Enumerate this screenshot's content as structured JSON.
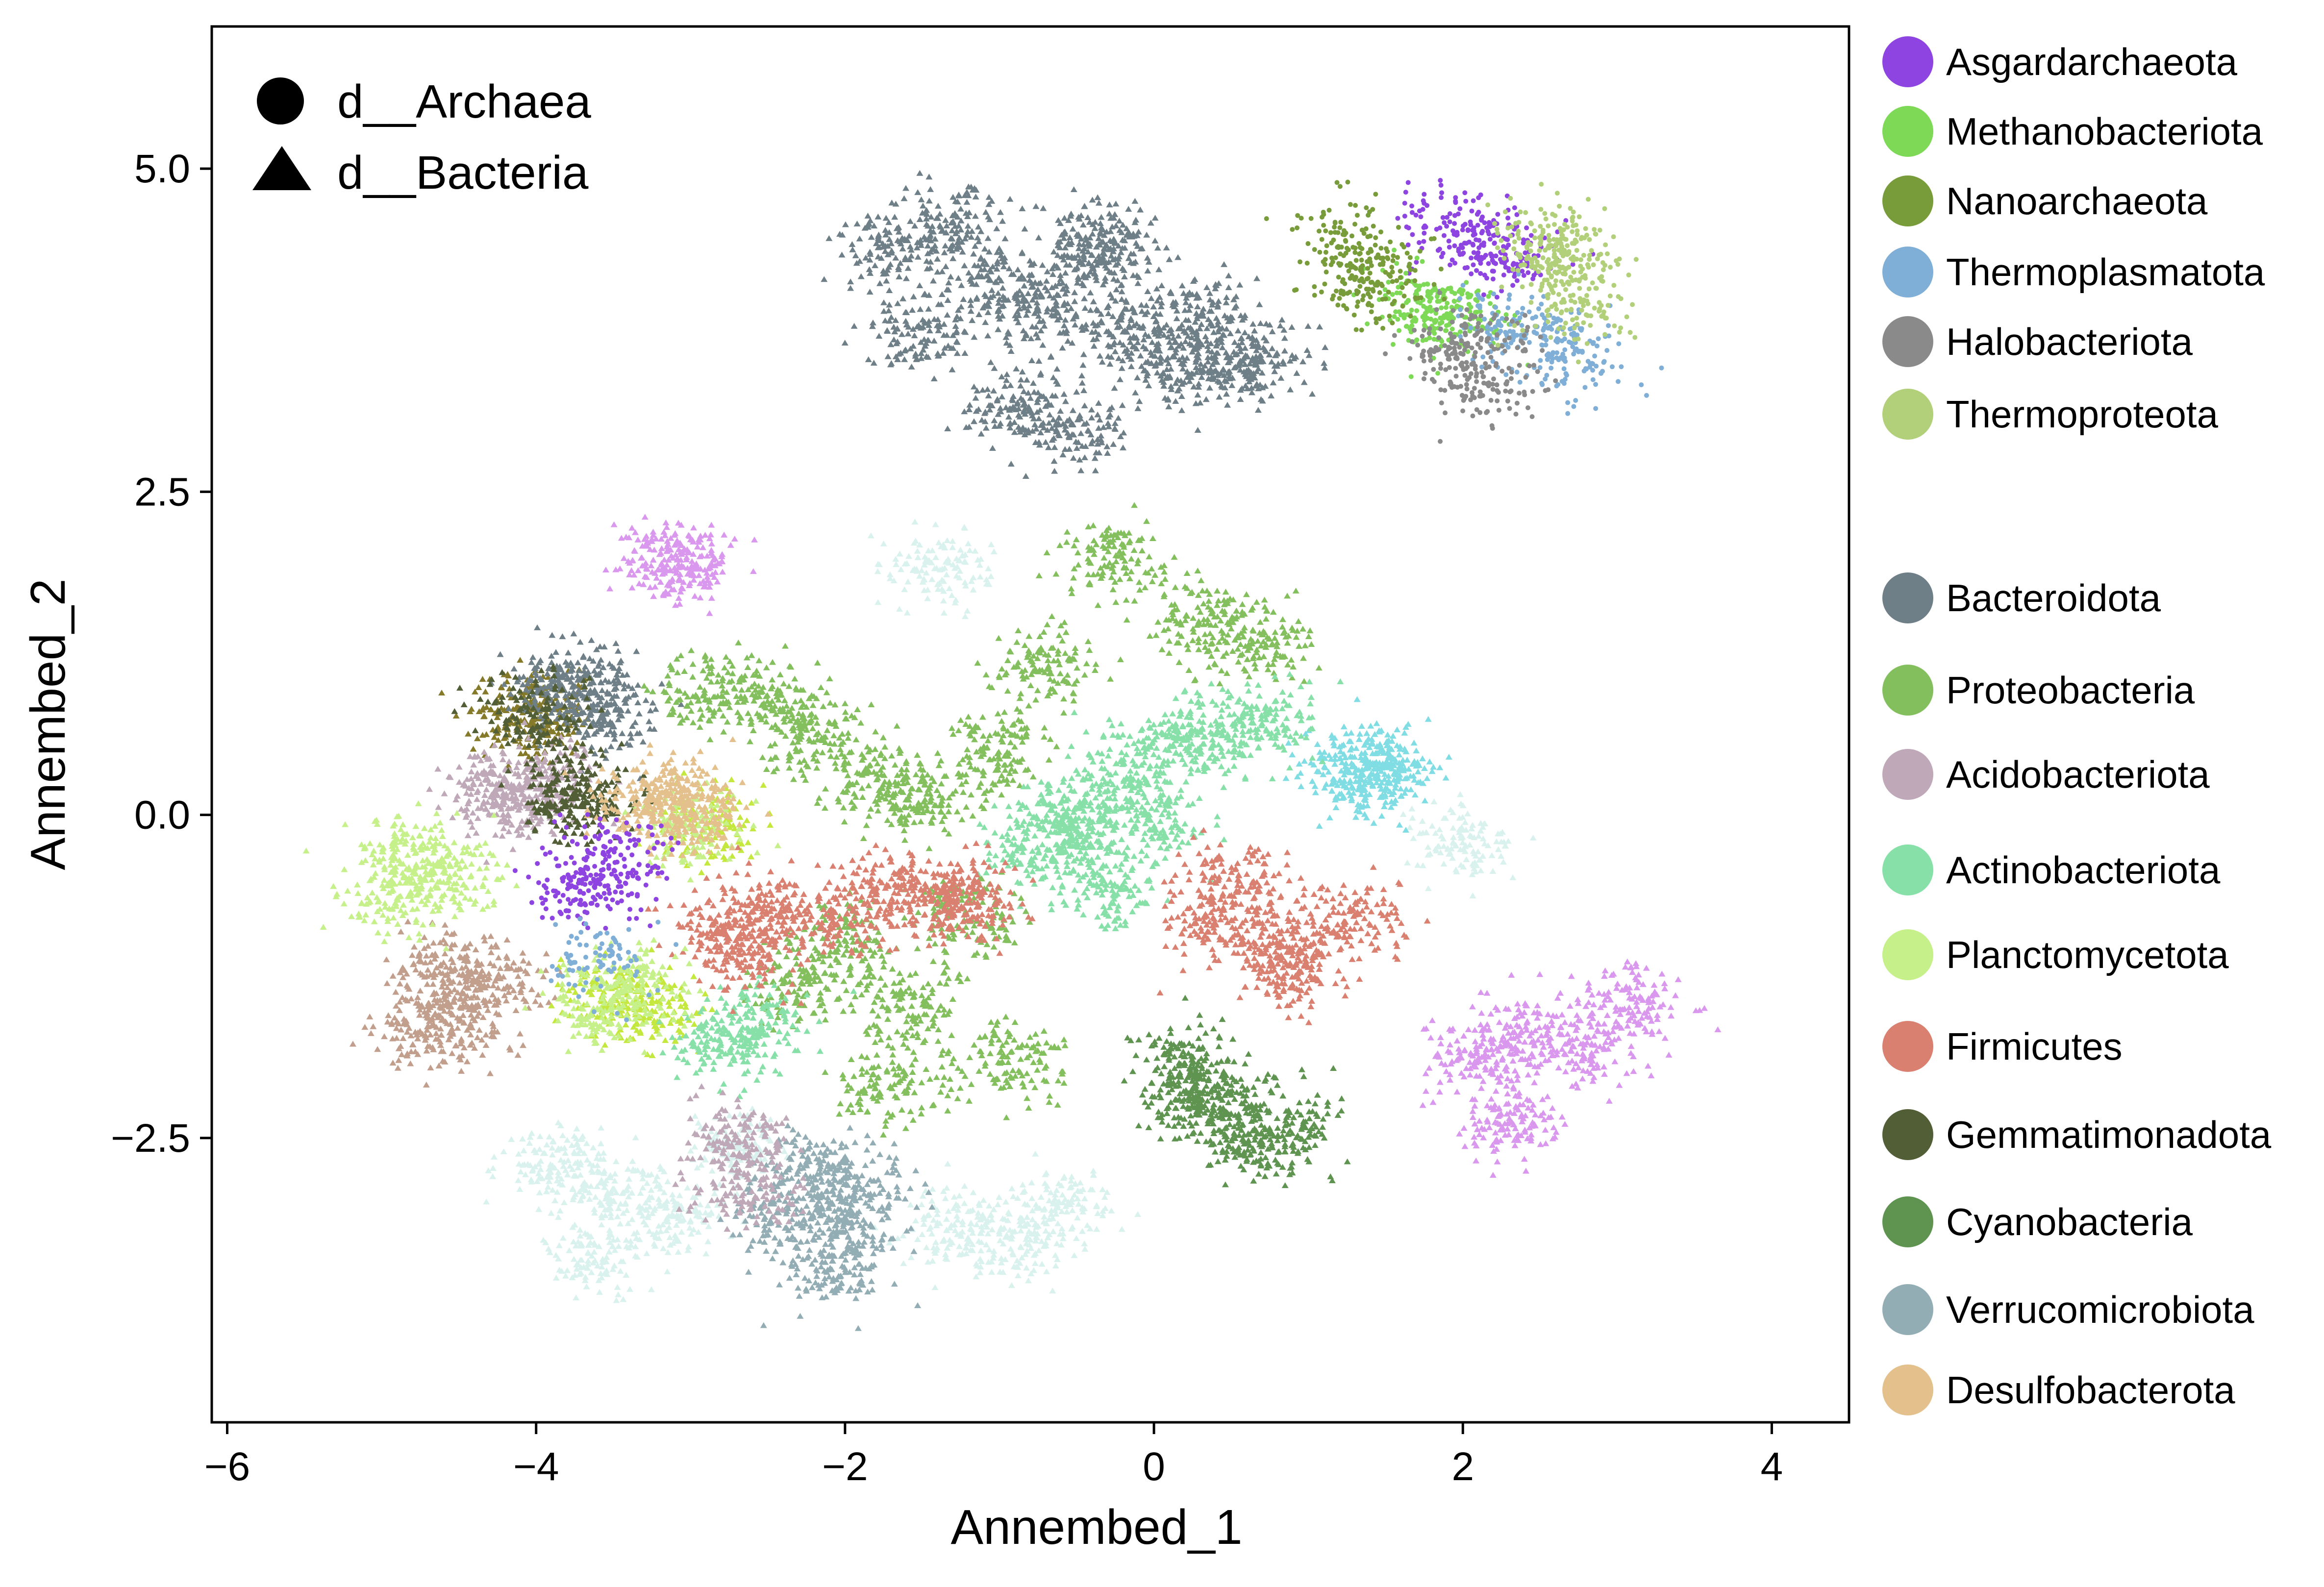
{
  "chart_data": {
    "type": "scatter",
    "title": "",
    "xlabel": "Annembed_1",
    "ylabel": "Annembed_2",
    "xlim": [
      -6.1,
      4.5
    ],
    "ylim": [
      -4.7,
      6.1
    ],
    "xticks": [
      {
        "value": -6,
        "label": "−6"
      },
      {
        "value": -4,
        "label": "−4"
      },
      {
        "value": -2,
        "label": "−2"
      },
      {
        "value": 0,
        "label": "0"
      },
      {
        "value": 2,
        "label": "2"
      },
      {
        "value": 4,
        "label": "4"
      }
    ],
    "yticks": [
      {
        "value": -2.5,
        "label": "−2.5"
      },
      {
        "value": 0,
        "label": "0.0"
      },
      {
        "value": 2.5,
        "label": "2.5"
      },
      {
        "value": 5,
        "label": "5.0"
      }
    ],
    "grid": false,
    "shape_legend": {
      "placement": "top-left",
      "entries": [
        {
          "label": "d__Archaea",
          "marker": "circle"
        },
        {
          "label": "d__Bacteria",
          "marker": "triangle"
        }
      ]
    },
    "color_legend": {
      "placement": "right",
      "archaea": [
        {
          "label": "Asgardarchaeota",
          "color": "#8E44E0"
        },
        {
          "label": "Methanobacteriota",
          "color": "#7ED957"
        },
        {
          "label": "Nanoarchaeota",
          "color": "#789C3A"
        },
        {
          "label": "Thermoplasmatota",
          "color": "#7FAED6"
        },
        {
          "label": "Halobacteriota",
          "color": "#8A8A8A"
        },
        {
          "label": "Thermoproteota",
          "color": "#B2D07A"
        }
      ],
      "bacteria": [
        {
          "label": "Bacteroidota",
          "color": "#6E7F87"
        },
        {
          "label": "Proteobacteria",
          "color": "#84BF5E"
        },
        {
          "label": "Acidobacteriota",
          "color": "#BFA8B8"
        },
        {
          "label": "Actinobacteriota",
          "color": "#86E0A8"
        },
        {
          "label": "Planctomycetota",
          "color": "#C6F08A"
        },
        {
          "label": "Firmicutes",
          "color": "#D98070"
        },
        {
          "label": "Gemmatimonadota",
          "color": "#525E36"
        },
        {
          "label": "Cyanobacteria",
          "color": "#5E9450"
        },
        {
          "label": "Verrucomicrobiota",
          "color": "#93ADB5"
        },
        {
          "label": "Desulfobacterota",
          "color": "#E4C08C"
        }
      ]
    },
    "series": [
      {
        "name": "Bacteroidota",
        "domain": "Bacteria",
        "marker": "triangle",
        "color": "#6E7F87",
        "x": [
          -1.7,
          -1.3,
          -1.0,
          -0.7,
          -0.4,
          -0.2,
          0.1,
          0.4,
          0.7,
          -1.5,
          -0.9,
          -0.5,
          -0.3,
          0.3,
          -3.7,
          -3.55,
          -3.85
        ],
        "y": [
          4.35,
          4.55,
          4.1,
          3.9,
          4.3,
          3.75,
          3.55,
          3.45,
          3.5,
          3.75,
          3.15,
          3.0,
          4.45,
          3.9,
          0.95,
          0.75,
          1.05
        ]
      },
      {
        "name": "Proteobacteria",
        "domain": "Bacteria",
        "marker": "triangle",
        "color": "#84BF5E",
        "x": [
          -2.5,
          -2.2,
          -1.8,
          -1.5,
          -1.0,
          -0.7,
          -0.3,
          0.3,
          0.7,
          -2.9,
          -2.0,
          -1.6,
          -1.2,
          -0.9,
          -2.3,
          -1.7
        ],
        "y": [
          0.9,
          0.6,
          0.3,
          0.1,
          0.5,
          1.15,
          2.0,
          1.5,
          1.35,
          0.95,
          -1.0,
          -1.5,
          -0.8,
          -1.9,
          -1.3,
          -2.1
        ]
      },
      {
        "name": "Actinobacteriota",
        "domain": "Bacteria",
        "marker": "triangle",
        "color": "#86E0A8",
        "x": [
          -0.5,
          -0.2,
          0.1,
          0.4,
          0.7,
          -0.8,
          -0.3,
          0.0,
          -2.6,
          -2.8,
          -0.6
        ],
        "y": [
          -0.1,
          0.3,
          0.6,
          0.65,
          0.7,
          -0.3,
          -0.6,
          -0.05,
          -1.6,
          -1.75,
          0.0
        ]
      },
      {
        "name": "Firmicutes",
        "domain": "Bacteria",
        "marker": "triangle",
        "color": "#D98070",
        "x": [
          -2.8,
          -2.5,
          -2.0,
          -1.7,
          -1.4,
          -1.2,
          0.5,
          0.8,
          0.9,
          1.3,
          0.4,
          -2.6
        ],
        "y": [
          -0.9,
          -0.7,
          -0.8,
          -0.55,
          -0.7,
          -0.65,
          -0.5,
          -1.0,
          -1.2,
          -0.8,
          -0.85,
          -1.1
        ]
      },
      {
        "name": "Cyanobacteria",
        "domain": "Bacteria",
        "marker": "triangle",
        "color": "#5E9450",
        "x": [
          0.2,
          0.4,
          0.6,
          0.85,
          0.3
        ],
        "y": [
          -1.9,
          -2.2,
          -2.5,
          -2.45,
          -2.15
        ]
      },
      {
        "name": "Verrucomicrobiota",
        "domain": "Bacteria",
        "marker": "triangle",
        "color": "#93ADB5",
        "x": [
          -2.2,
          -1.9,
          -2.0,
          -2.1,
          -2.4
        ],
        "y": [
          -2.7,
          -2.9,
          -3.2,
          -3.5,
          -3.1
        ]
      },
      {
        "name": "Acidobacteriota",
        "domain": "Bacteria",
        "marker": "triangle",
        "color": "#BFA8B8",
        "x": [
          -4.3,
          -4.1,
          -3.9,
          -2.7,
          -2.65
        ],
        "y": [
          0.2,
          0.15,
          0.25,
          -2.5,
          -2.9
        ]
      },
      {
        "name": "Planctomycetota",
        "domain": "Bacteria",
        "marker": "triangle",
        "color": "#C6F08A",
        "x": [
          -4.8,
          -4.6,
          -4.9,
          -3.0,
          -3.4,
          -3.6
        ],
        "y": [
          -0.3,
          -0.5,
          -0.6,
          -0.1,
          -1.3,
          -1.5
        ]
      },
      {
        "name": "Gemmatimonadota",
        "domain": "Bacteria",
        "marker": "triangle",
        "color": "#525E36",
        "x": [
          -4.0,
          -3.8,
          -3.7
        ],
        "y": [
          0.8,
          0.2,
          0.1
        ]
      },
      {
        "name": "Desulfobacterota",
        "domain": "Bacteria",
        "marker": "triangle",
        "color": "#E4C08C",
        "x": [
          -3.3,
          -3.1,
          -3.0
        ],
        "y": [
          0.1,
          0.15,
          0.0
        ]
      },
      {
        "name": "Asgardarchaeota",
        "domain": "Archaea",
        "marker": "circle",
        "color": "#8E44E0",
        "x": [
          -3.7,
          -3.5,
          -3.6,
          2.1,
          2.3,
          1.9
        ],
        "y": [
          -0.6,
          -0.3,
          -0.5,
          4.4,
          4.35,
          4.6
        ]
      },
      {
        "name": "Methanobacteriota",
        "domain": "Archaea",
        "marker": "circle",
        "color": "#7ED957",
        "x": [
          1.7,
          1.8,
          2.0
        ],
        "y": [
          3.95,
          3.9,
          3.85
        ]
      },
      {
        "name": "Nanoarchaeota",
        "domain": "Archaea",
        "marker": "circle",
        "color": "#789C3A",
        "x": [
          1.3,
          1.4,
          1.25
        ],
        "y": [
          4.15,
          4.1,
          4.5
        ]
      },
      {
        "name": "Thermoplasmatota",
        "domain": "Archaea",
        "marker": "circle",
        "color": "#7FAED6",
        "x": [
          2.3,
          2.5,
          2.7,
          -3.6
        ],
        "y": [
          3.8,
          3.7,
          3.5,
          -1.1
        ]
      },
      {
        "name": "Halobacteriota",
        "domain": "Archaea",
        "marker": "circle",
        "color": "#8A8A8A",
        "x": [
          2.0,
          2.15,
          2.1
        ],
        "y": [
          3.55,
          3.3,
          3.7
        ]
      },
      {
        "name": "Thermoproteota",
        "domain": "Archaea",
        "marker": "circle",
        "color": "#B2D07A",
        "x": [
          2.55,
          2.7,
          2.75,
          2.6
        ],
        "y": [
          4.5,
          4.2,
          3.95,
          4.35
        ]
      }
    ],
    "unlabelled_series": [
      {
        "marker": "triangle",
        "color": "#D9F2EE",
        "x": [
          -3.9,
          -3.5,
          -3.1,
          -2.7,
          -1.3,
          -0.9,
          -0.6,
          2.0,
          -3.6,
          -1.4
        ],
        "y": [
          -2.7,
          -2.9,
          -3.1,
          -2.6,
          -3.2,
          -3.3,
          -3.05,
          -0.2,
          -3.4,
          1.9
        ]
      },
      {
        "marker": "triangle",
        "color": "#D998EE",
        "x": [
          2.1,
          2.4,
          2.8,
          3.1,
          2.3,
          -3.15,
          -3.05
        ],
        "y": [
          -1.9,
          -1.7,
          -1.8,
          -1.45,
          -2.4,
          2.0,
          1.95
        ]
      },
      {
        "marker": "triangle",
        "color": "#7FDDE3",
        "x": [
          1.4,
          1.5,
          1.3
        ],
        "y": [
          0.4,
          0.35,
          0.3
        ]
      },
      {
        "marker": "triangle",
        "color": "#C29E8C",
        "x": [
          -4.6,
          -4.5,
          -4.3,
          -4.7
        ],
        "y": [
          -1.2,
          -1.55,
          -1.3,
          -1.7
        ]
      },
      {
        "marker": "triangle",
        "color": "#C4E83E",
        "x": [
          -3.5,
          -3.3,
          -2.9
        ],
        "y": [
          -1.4,
          -1.5,
          -0.1
        ]
      },
      {
        "marker": "triangle",
        "color": "#857A2A",
        "x": [
          -4.1,
          -3.95
        ],
        "y": [
          0.8,
          0.75
        ]
      }
    ]
  }
}
